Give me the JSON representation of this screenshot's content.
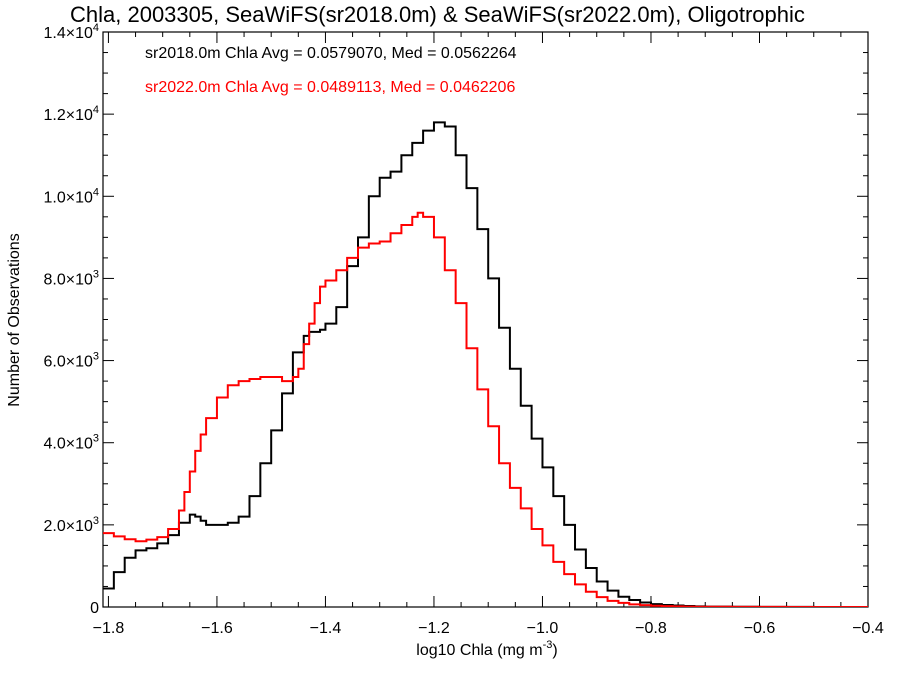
{
  "chart_data": {
    "type": "line",
    "step": true,
    "title": "Chla, 2003305, SeaWiFS(sr2018.0m) & SeaWiFS(sr2022.0m), Oligotrophic",
    "xlabel": "log10 Chla (mg m",
    "xlabel_sup": "-3",
    "xlabel_close": ")",
    "ylabel": "Number of Observations",
    "xlim": [
      -1.81,
      -0.4
    ],
    "ylim": [
      0,
      14000
    ],
    "grid": false,
    "x_ticks": [
      -1.8,
      -1.6,
      -1.4,
      -1.2,
      -1.0,
      -0.8,
      -0.6,
      -0.4
    ],
    "x_tick_labels": [
      "−1.8",
      "−1.6",
      "−1.4",
      "−1.2",
      "−1.0",
      "−0.8",
      "−0.6",
      "−0.4"
    ],
    "y_ticks": [
      {
        "value": 0,
        "base": "0",
        "exp": ""
      },
      {
        "value": 2000,
        "base": "2.0×10",
        "exp": "3"
      },
      {
        "value": 4000,
        "base": "4.0×10",
        "exp": "3"
      },
      {
        "value": 6000,
        "base": "6.0×10",
        "exp": "3"
      },
      {
        "value": 8000,
        "base": "8.0×10",
        "exp": "3"
      },
      {
        "value": 10000,
        "base": "1.0×10",
        "exp": "4"
      },
      {
        "value": 12000,
        "base": "1.2×10",
        "exp": "4"
      },
      {
        "value": 14000,
        "base": "1.4×10",
        "exp": "4"
      }
    ],
    "x_minor_step": 0.05,
    "y_minor_step": 500,
    "annotations": [
      {
        "text": "sr2018.0m Chla Avg = 0.0579070, Med = 0.0562264",
        "color": "#000000"
      },
      {
        "text": "sr2022.0m Chla Avg = 0.0489113, Med = 0.0462206",
        "color": "#ff0000"
      }
    ],
    "series": [
      {
        "color": "#000000",
        "x": [
          -1.81,
          -1.79,
          -1.77,
          -1.75,
          -1.73,
          -1.71,
          -1.69,
          -1.67,
          -1.65,
          -1.64,
          -1.63,
          -1.62,
          -1.6,
          -1.58,
          -1.56,
          -1.54,
          -1.52,
          -1.5,
          -1.48,
          -1.46,
          -1.44,
          -1.43,
          -1.42,
          -1.41,
          -1.4,
          -1.38,
          -1.36,
          -1.34,
          -1.32,
          -1.3,
          -1.28,
          -1.26,
          -1.24,
          -1.22,
          -1.2,
          -1.18,
          -1.16,
          -1.14,
          -1.12,
          -1.1,
          -1.08,
          -1.06,
          -1.04,
          -1.02,
          -1.0,
          -0.98,
          -0.96,
          -0.94,
          -0.92,
          -0.9,
          -0.88,
          -0.86,
          -0.84,
          -0.82,
          -0.8,
          -0.78,
          -0.76,
          -0.74,
          -0.72,
          -0.7,
          -0.65,
          -0.6,
          -0.55,
          -0.5,
          -0.45,
          -0.4
        ],
        "y": [
          450,
          850,
          1200,
          1380,
          1430,
          1550,
          1750,
          2050,
          2250,
          2200,
          2100,
          2000,
          2000,
          2050,
          2200,
          2700,
          3500,
          4300,
          5200,
          6200,
          6600,
          6700,
          6700,
          6750,
          6900,
          7300,
          8300,
          9000,
          10000,
          10450,
          10600,
          11000,
          11300,
          11600,
          11800,
          11700,
          11000,
          10200,
          9200,
          8000,
          6800,
          5800,
          4900,
          4100,
          3400,
          2700,
          2000,
          1400,
          950,
          620,
          400,
          250,
          170,
          110,
          70,
          50,
          35,
          25,
          15,
          10,
          5,
          3,
          2,
          1,
          1,
          0
        ]
      },
      {
        "color": "#ff0000",
        "x": [
          -1.81,
          -1.79,
          -1.77,
          -1.75,
          -1.73,
          -1.71,
          -1.69,
          -1.67,
          -1.66,
          -1.65,
          -1.64,
          -1.63,
          -1.62,
          -1.6,
          -1.58,
          -1.56,
          -1.54,
          -1.52,
          -1.5,
          -1.48,
          -1.46,
          -1.45,
          -1.44,
          -1.43,
          -1.42,
          -1.41,
          -1.4,
          -1.38,
          -1.36,
          -1.34,
          -1.32,
          -1.3,
          -1.28,
          -1.26,
          -1.24,
          -1.23,
          -1.22,
          -1.2,
          -1.18,
          -1.16,
          -1.14,
          -1.12,
          -1.1,
          -1.08,
          -1.06,
          -1.04,
          -1.02,
          -1.0,
          -0.98,
          -0.96,
          -0.94,
          -0.92,
          -0.9,
          -0.88,
          -0.86,
          -0.84,
          -0.82,
          -0.8,
          -0.78,
          -0.76,
          -0.74,
          -0.72,
          -0.7,
          -0.65,
          -0.6,
          -0.55,
          -0.5,
          -0.45,
          -0.4
        ],
        "y": [
          1800,
          1720,
          1650,
          1600,
          1640,
          1700,
          1900,
          2350,
          2800,
          3300,
          3800,
          4200,
          4600,
          5100,
          5400,
          5500,
          5550,
          5600,
          5600,
          5500,
          5600,
          5800,
          6400,
          6900,
          7400,
          7800,
          7950,
          8200,
          8500,
          8750,
          8850,
          8900,
          9100,
          9300,
          9500,
          9600,
          9500,
          9000,
          8200,
          7400,
          6300,
          5300,
          4400,
          3500,
          2900,
          2400,
          1900,
          1500,
          1100,
          800,
          550,
          370,
          240,
          150,
          100,
          65,
          45,
          30,
          20,
          15,
          10,
          7,
          5,
          3,
          2,
          1,
          1,
          0,
          0
        ]
      }
    ]
  }
}
